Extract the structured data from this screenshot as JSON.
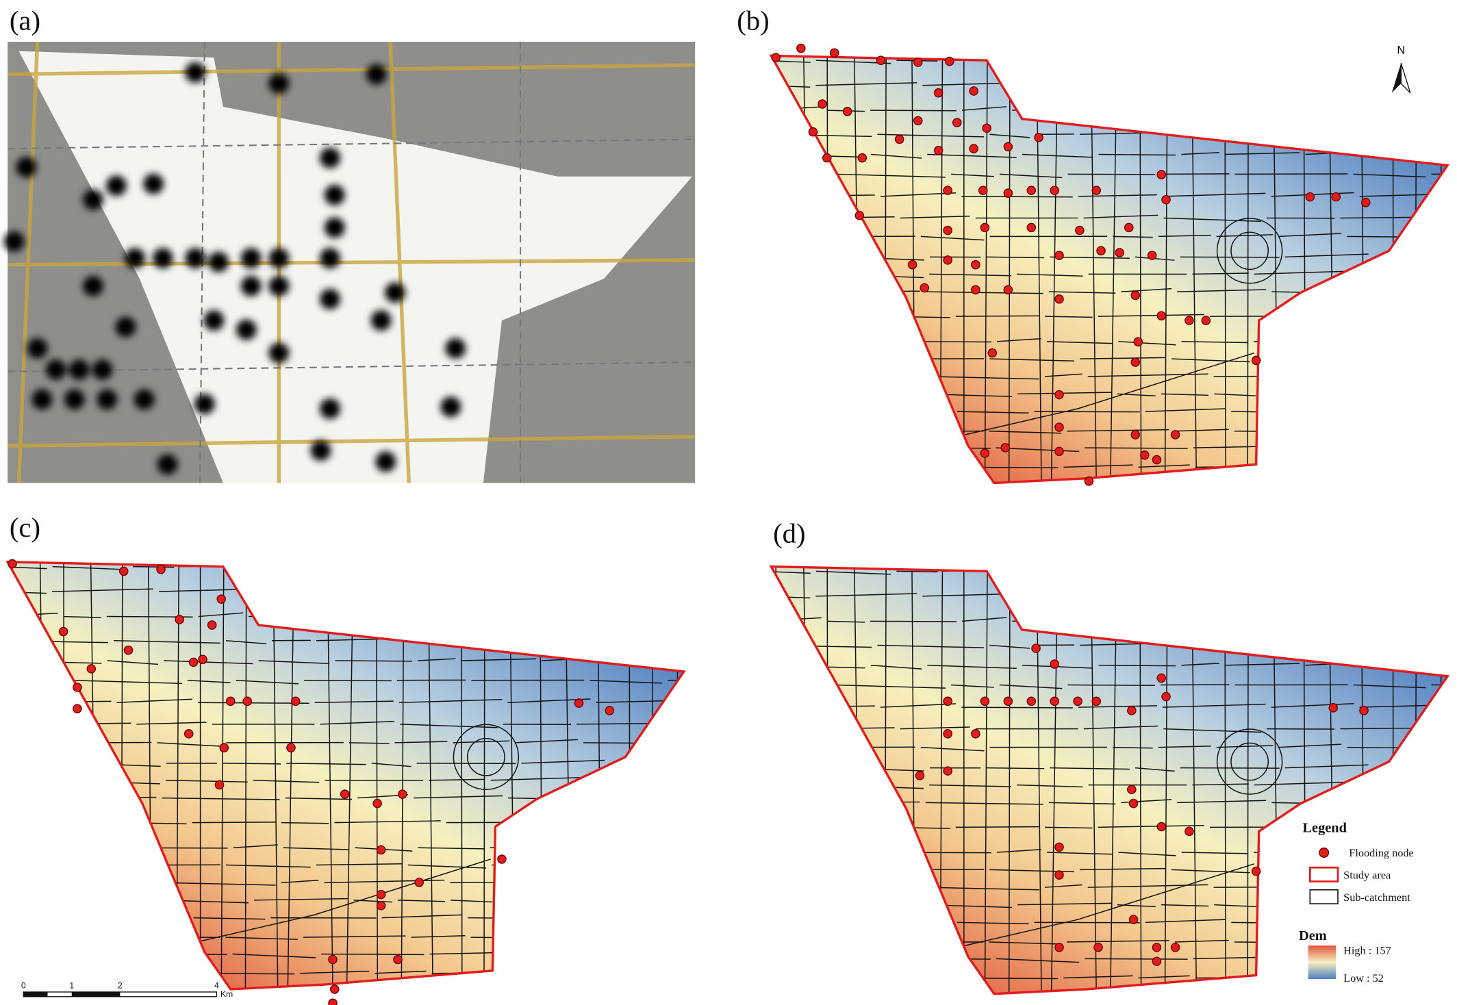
{
  "panels": {
    "a": "(a)",
    "b": "(b)",
    "c": "(c)",
    "d": "(d)"
  },
  "north": "N",
  "legend": {
    "title": "Legend",
    "flooding_node": "Flooding node",
    "study_area": "Study area",
    "sub_catchment": "Sub-catchment",
    "dem_title": "Dem",
    "high": "High : 157",
    "low": "Low : 52"
  },
  "scale_bar": {
    "labels": [
      "0",
      "1",
      "2",
      "4"
    ],
    "unit": "Km"
  }
}
